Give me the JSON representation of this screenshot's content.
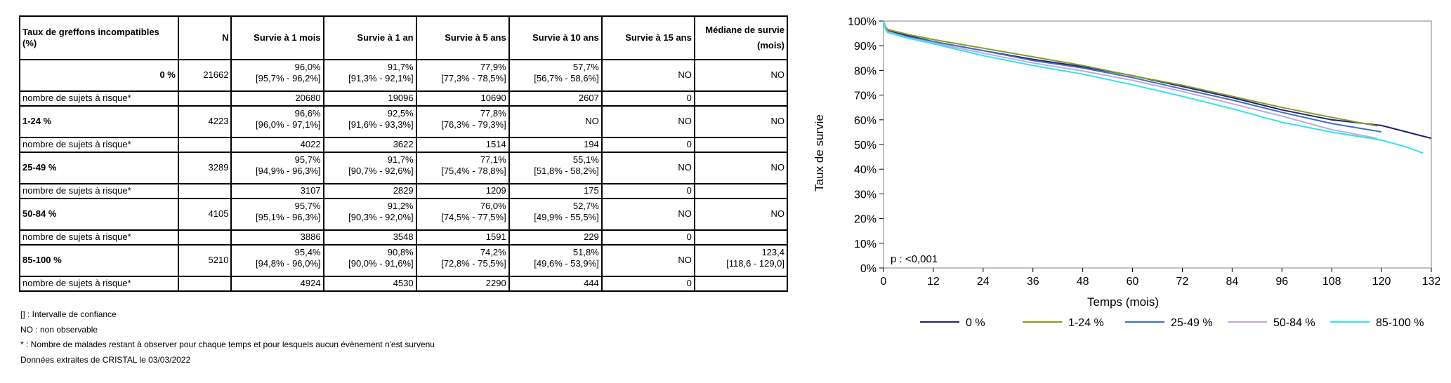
{
  "table": {
    "headers": [
      "Taux de greffons incompatibles (%)",
      "N",
      "Survie à 1 mois",
      "Survie à 1 an",
      "Survie à 5 ans",
      "Survie à 10 ans",
      "Survie à 15 ans",
      "Médiane de survie (mois)"
    ],
    "risk_label": "nombre de sujets à risque*",
    "groups": [
      {
        "label": "0 %",
        "n": "21662",
        "s1m": "96,0%",
        "ci1m": "[95,7% - 96,2%]",
        "s1y": "91,7%",
        "ci1y": "[91,3% - 92,1%]",
        "s5y": "77,9%",
        "ci5y": "[77,3% - 78,5%]",
        "s10y": "57,7%",
        "ci10y": "[56,7% - 58,6%]",
        "s15y": "NO",
        "median": "NO",
        "median_ci": "",
        "risk": [
          "20680",
          "19096",
          "10690",
          "2607",
          "0"
        ]
      },
      {
        "label": "1-24 %",
        "n": "4223",
        "s1m": "96,6%",
        "ci1m": "[96,0% - 97,1%]",
        "s1y": "92,5%",
        "ci1y": "[91,6% - 93,3%]",
        "s5y": "77,8%",
        "ci5y": "[76,3% - 79,3%]",
        "s10y": "NO",
        "ci10y": "",
        "s15y": "NO",
        "median": "NO",
        "median_ci": "",
        "risk": [
          "4022",
          "3622",
          "1514",
          "194",
          "0"
        ]
      },
      {
        "label": "25-49 %",
        "n": "3289",
        "s1m": "95,7%",
        "ci1m": "[94,9% - 96,3%]",
        "s1y": "91,7%",
        "ci1y": "[90,7% - 92,6%]",
        "s5y": "77,1%",
        "ci5y": "[75,4% - 78,8%]",
        "s10y": "55,1%",
        "ci10y": "[51,8% - 58,2%]",
        "s15y": "NO",
        "median": "NO",
        "median_ci": "",
        "risk": [
          "3107",
          "2829",
          "1209",
          "175",
          "0"
        ]
      },
      {
        "label": "50-84 %",
        "n": "4105",
        "s1m": "95,7%",
        "ci1m": "[95,1% - 96,3%]",
        "s1y": "91,2%",
        "ci1y": "[90,3% - 92,0%]",
        "s5y": "76,0%",
        "ci5y": "[74,5% - 77,5%]",
        "s10y": "52,7%",
        "ci10y": "[49,9% - 55,5%]",
        "s15y": "NO",
        "median": "NO",
        "median_ci": "",
        "risk": [
          "3886",
          "3548",
          "1591",
          "229",
          "0"
        ]
      },
      {
        "label": "85-100 %",
        "n": "5210",
        "s1m": "95,4%",
        "ci1m": "[94,8% - 96,0%]",
        "s1y": "90,8%",
        "ci1y": "[90,0% - 91,6%]",
        "s5y": "74,2%",
        "ci5y": "[72,8% - 75,5%]",
        "s10y": "51,8%",
        "ci10y": "[49,6% - 53,9%]",
        "s15y": "NO",
        "median": "123,4",
        "median_ci": "[118,6 - 129,0]",
        "risk": [
          "4924",
          "4530",
          "2290",
          "444",
          "0"
        ]
      }
    ]
  },
  "notes": [
    "[] : Intervalle de confiance",
    "NO : non observable",
    "* : Nombre de malades restant à observer pour chaque temps et pour lesquels aucun évènement n'est survenu",
    "Données extraites de CRISTAL le 03/03/2022"
  ],
  "chart_data": {
    "type": "line",
    "xlabel": "Temps (mois)",
    "ylabel": "Taux de survie",
    "xlim": [
      0,
      132
    ],
    "ylim": [
      0,
      100
    ],
    "xticks": [
      "0",
      "12",
      "24",
      "36",
      "48",
      "60",
      "72",
      "84",
      "96",
      "108",
      "120",
      "132"
    ],
    "yticks": [
      "0%",
      "10%",
      "20%",
      "30%",
      "40%",
      "50%",
      "60%",
      "70%",
      "80%",
      "90%",
      "100%"
    ],
    "annotation": "p : <0,001",
    "legend_position": "bottom",
    "series": [
      {
        "name": "0 %",
        "color": "#1f1f7a",
        "x": [
          0,
          0.5,
          1,
          6,
          12,
          24,
          36,
          48,
          60,
          72,
          84,
          96,
          108,
          120,
          132
        ],
        "y": [
          100,
          97,
          96.0,
          94.0,
          91.7,
          88.0,
          84.5,
          81.5,
          77.9,
          73.5,
          69.0,
          64.0,
          60.0,
          57.7,
          52.5
        ]
      },
      {
        "name": "1-24 %",
        "color": "#8a9a1e",
        "x": [
          0,
          0.5,
          1,
          6,
          12,
          24,
          36,
          48,
          60,
          72,
          84,
          96,
          108,
          119
        ],
        "y": [
          100,
          97.5,
          96.6,
          94.5,
          92.5,
          89.0,
          85.5,
          82.0,
          77.8,
          74.0,
          69.5,
          65.0,
          61.0,
          57.5
        ]
      },
      {
        "name": "25-49 %",
        "color": "#3f6fc0",
        "x": [
          0,
          0.5,
          1,
          6,
          12,
          24,
          36,
          48,
          60,
          72,
          84,
          96,
          108,
          120
        ],
        "y": [
          100,
          96.8,
          95.7,
          93.5,
          91.7,
          88.0,
          84.0,
          81.0,
          77.1,
          72.5,
          68.0,
          63.0,
          58.5,
          55.1
        ]
      },
      {
        "name": "50-84 %",
        "color": "#c0a8e8",
        "x": [
          0,
          0.5,
          1,
          6,
          12,
          24,
          36,
          48,
          60,
          72,
          84,
          96,
          108,
          119
        ],
        "y": [
          100,
          96.7,
          95.7,
          93.2,
          91.2,
          87.0,
          83.0,
          79.8,
          76.0,
          71.5,
          66.5,
          61.5,
          56.0,
          52.5
        ]
      },
      {
        "name": "85-100 %",
        "color": "#2ee6e6",
        "x": [
          0,
          0.5,
          1,
          6,
          12,
          24,
          36,
          48,
          60,
          72,
          84,
          96,
          108,
          120,
          126,
          130
        ],
        "y": [
          100,
          96.5,
          95.4,
          93.0,
          90.8,
          86.0,
          82.0,
          78.5,
          74.2,
          69.5,
          64.5,
          59.0,
          55.0,
          51.8,
          49.0,
          46.5
        ]
      }
    ]
  }
}
